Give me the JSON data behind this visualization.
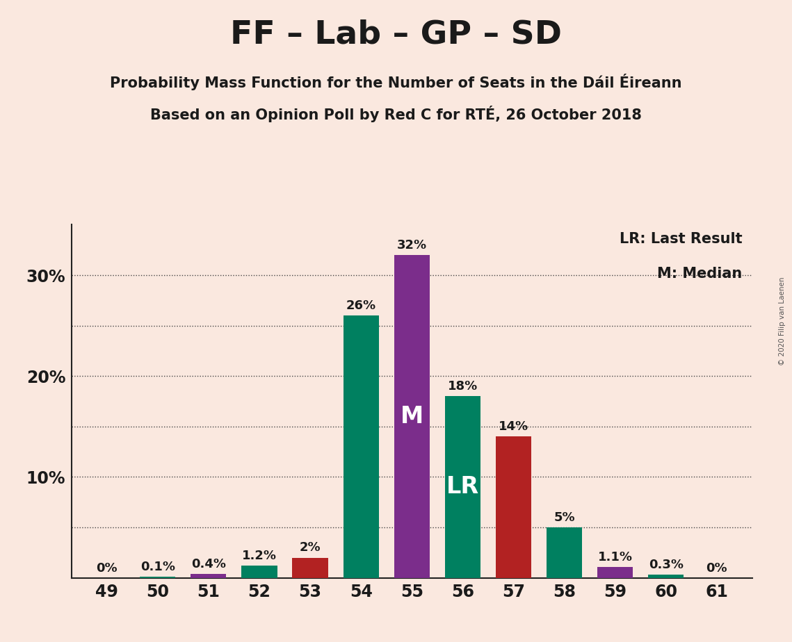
{
  "title": "FF – Lab – GP – SD",
  "subtitle1": "Probability Mass Function for the Number of Seats in the Dáil Éireann",
  "subtitle2": "Based on an Opinion Poll by Red C for RTÉ, 26 October 2018",
  "copyright": "© 2020 Filip van Laenen",
  "legend_lr": "LR: Last Result",
  "legend_m": "M: Median",
  "seats": [
    49,
    50,
    51,
    52,
    53,
    54,
    55,
    56,
    57,
    58,
    59,
    60,
    61
  ],
  "values": [
    0.0,
    0.1,
    0.4,
    1.2,
    2.0,
    26.0,
    32.0,
    18.0,
    14.0,
    5.0,
    1.1,
    0.3,
    0.0
  ],
  "labels": [
    "0%",
    "0.1%",
    "0.4%",
    "1.2%",
    "2%",
    "26%",
    "32%",
    "18%",
    "14%",
    "5%",
    "1.1%",
    "0.3%",
    "0%"
  ],
  "bar_colors": [
    "#008060",
    "#008060",
    "#7B2D8B",
    "#008060",
    "#B22222",
    "#008060",
    "#7B2D8B",
    "#008060",
    "#B22222",
    "#008060",
    "#7B2D8B",
    "#008060",
    "#008060"
  ],
  "median_seat": 55,
  "lr_seat": 56,
  "median_label": "M",
  "lr_label": "LR",
  "background_color": "#FAE8DF",
  "bar_width": 0.7,
  "ylim_max": 35,
  "ytick_positions": [
    0,
    10,
    20,
    30
  ],
  "ytick_labels": [
    "",
    "10%",
    "20%",
    "30%"
  ],
  "dotted_yticks": [
    5,
    10,
    15,
    20,
    25,
    30
  ],
  "label_fontsize": 13,
  "tick_fontsize": 17,
  "subtitle_fontsize": 15,
  "title_fontsize": 34
}
